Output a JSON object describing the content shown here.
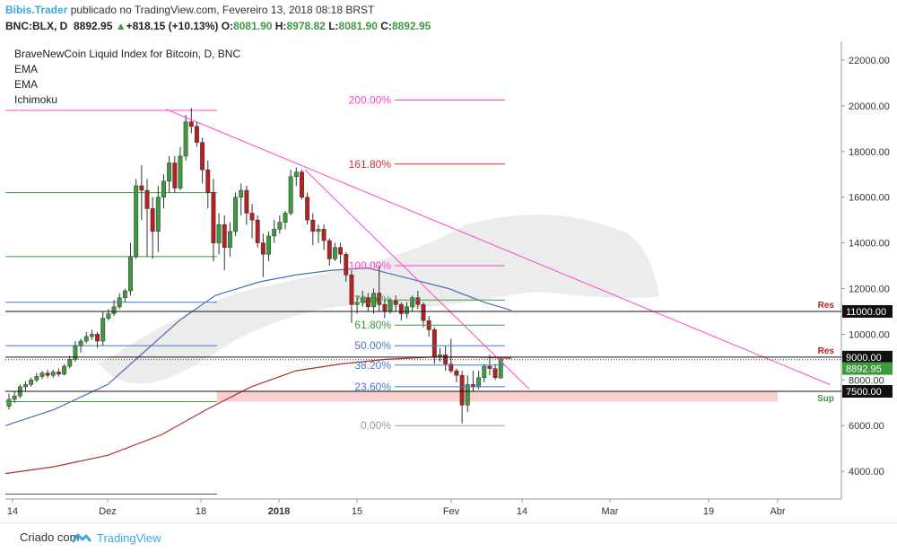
{
  "header": {
    "user": "Bibis.Trader",
    "published": " publicado no TradingView.com, Fevereiro 13, 2018 08:18 BRST",
    "symbol": "BNC:BLX, D",
    "price": "8892.95",
    "change_arrow": "▲",
    "change": "+818.15 (+10.13%)",
    "o_label": "O:",
    "o": "8081.90",
    "h_label": "H:",
    "h": "8978.82",
    "l_label": "L:",
    "l": "8081.90",
    "c_label": "C:",
    "c": "8892.95"
  },
  "legend": [
    "BraveNewCoin Liquid Index for Bitcoin, D, BNC",
    "EMA",
    "EMA",
    "Ichimoku"
  ],
  "footer": {
    "text": "Criado com",
    "brand": "TradingView"
  },
  "colors": {
    "up": "#3e9a3e",
    "down": "#b52020",
    "fib_pink": "#ff44cc",
    "fib_red": "#d03030",
    "fib_green": "#3e9a3e",
    "fib_blue": "#4a78c8",
    "fib_gray": "#9a9a9a",
    "ema_blue": "#4a6fb0",
    "ema_red": "#b03030"
  },
  "chart_data": {
    "type": "candlestick",
    "x_ticks": [
      "14",
      "Dez",
      "18",
      "2018",
      "15",
      "Fev",
      "14",
      "Mar",
      "19",
      "Abr"
    ],
    "y_ticks": [
      "4000.00",
      "6000.00",
      "8000.00",
      "10000.00",
      "12000.00",
      "14000.00",
      "16000.00",
      "18000.00",
      "20000.00",
      "22000.00"
    ],
    "ylim": [
      2500,
      23500
    ],
    "current_price_label": "8892.95",
    "levels": [
      {
        "price": 11000,
        "label": "11000.00",
        "tag": "Res"
      },
      {
        "price": 9000,
        "label": "9000.00",
        "tag": "Res"
      },
      {
        "price": 7500,
        "label": "7500.00",
        "tag": "Sup"
      }
    ],
    "fib_levels": [
      {
        "label": "200.00%",
        "price": 20250
      },
      {
        "label": "161.80%",
        "price": 17450
      },
      {
        "label": "100.00%",
        "price": 13000
      },
      {
        "label": "78.60%",
        "price": 11500
      },
      {
        "label": "61.80%",
        "price": 10400
      },
      {
        "label": "50.00%",
        "price": 9500
      },
      {
        "label": "38.20%",
        "price": 8650
      },
      {
        "label": "23.60%",
        "price": 7700
      },
      {
        "label": "0.00%",
        "price": 6000
      }
    ],
    "candles": [
      [
        6850,
        7150,
        7400,
        6700
      ],
      [
        7150,
        7300,
        7500,
        7000
      ],
      [
        7300,
        7700,
        7800,
        7200
      ],
      [
        7700,
        7800,
        7950,
        7500
      ],
      [
        7800,
        8000,
        8100,
        7700
      ],
      [
        8000,
        8150,
        8300,
        7900
      ],
      [
        8150,
        8300,
        8400,
        8050
      ],
      [
        8300,
        8200,
        8450,
        8100
      ],
      [
        8200,
        8350,
        8450,
        8100
      ],
      [
        8350,
        8250,
        8500,
        8150
      ],
      [
        8250,
        8600,
        8700,
        8200
      ],
      [
        8600,
        8900,
        9050,
        8500
      ],
      [
        8900,
        9500,
        9700,
        8800
      ],
      [
        9500,
        9700,
        9800,
        9200
      ],
      [
        9700,
        9900,
        10100,
        9600
      ],
      [
        9900,
        10000,
        10200,
        9750
      ],
      [
        10000,
        9700,
        10100,
        9400
      ],
      [
        9700,
        10700,
        11000,
        9500
      ],
      [
        10700,
        10900,
        11100,
        10600
      ],
      [
        10900,
        11200,
        11500,
        10800
      ],
      [
        11200,
        11600,
        11800,
        11100
      ],
      [
        11600,
        11900,
        12000,
        11400
      ],
      [
        11900,
        13400,
        14000,
        11700
      ],
      [
        13400,
        16500,
        16800,
        13300
      ],
      [
        16500,
        16300,
        17400,
        15000
      ],
      [
        16300,
        15500,
        16800,
        13400
      ],
      [
        15500,
        14500,
        16000,
        13300
      ],
      [
        14500,
        16000,
        16500,
        13600
      ],
      [
        16000,
        16700,
        17000,
        15500
      ],
      [
        16700,
        17500,
        17800,
        16200
      ],
      [
        17500,
        16400,
        17800,
        16200
      ],
      [
        16400,
        17800,
        18200,
        16300
      ],
      [
        17800,
        19300,
        19600,
        17600
      ],
      [
        19300,
        19100,
        19900,
        18800
      ],
      [
        19100,
        18400,
        19300,
        18200
      ],
      [
        18400,
        17200,
        18600,
        16600
      ],
      [
        17200,
        16200,
        17600,
        15500
      ],
      [
        16200,
        14000,
        16800,
        13200
      ],
      [
        14000,
        14800,
        15300,
        13500
      ],
      [
        14800,
        13800,
        15200,
        12800
      ],
      [
        13800,
        14500,
        14900,
        13400
      ],
      [
        14500,
        16000,
        16200,
        14300
      ],
      [
        16000,
        16300,
        16600,
        15200
      ],
      [
        16300,
        15300,
        16500,
        14800
      ],
      [
        15300,
        15000,
        15700,
        14200
      ],
      [
        15000,
        14000,
        15200,
        13800
      ],
      [
        14000,
        13500,
        14400,
        12500
      ],
      [
        13500,
        14300,
        14500,
        13200
      ],
      [
        14300,
        14600,
        15000,
        14000
      ],
      [
        14600,
        14900,
        15200,
        14400
      ],
      [
        14900,
        15300,
        15400,
        14600
      ],
      [
        15300,
        16900,
        17200,
        15200
      ],
      [
        16900,
        17100,
        17300,
        16500
      ],
      [
        17100,
        16000,
        17200,
        15900
      ],
      [
        16000,
        15000,
        16200,
        14800
      ],
      [
        15000,
        14500,
        15300,
        13900
      ],
      [
        14500,
        14600,
        14800,
        14000
      ],
      [
        14600,
        14100,
        14800,
        13700
      ],
      [
        14100,
        13300,
        14200,
        13000
      ],
      [
        13300,
        13800,
        14000,
        13200
      ],
      [
        13800,
        13500,
        14000,
        13100
      ],
      [
        13500,
        12600,
        13600,
        12300
      ],
      [
        12600,
        11300,
        12800,
        10500
      ],
      [
        11300,
        11400,
        11700,
        10900
      ],
      [
        11400,
        11600,
        11900,
        11200
      ],
      [
        11600,
        11200,
        11800,
        11000
      ],
      [
        11200,
        11800,
        12000,
        10900
      ],
      [
        11800,
        11300,
        13000,
        11000
      ],
      [
        11300,
        11000,
        11600,
        10700
      ],
      [
        11000,
        11500,
        11600,
        10900
      ],
      [
        11500,
        11300,
        11700,
        11000
      ],
      [
        11300,
        10900,
        11400,
        10600
      ],
      [
        10900,
        11200,
        11400,
        10700
      ],
      [
        11200,
        11600,
        11700,
        11000
      ],
      [
        11600,
        11300,
        11900,
        11100
      ],
      [
        11300,
        10600,
        11400,
        10300
      ],
      [
        10600,
        10200,
        10800,
        9900
      ],
      [
        10200,
        9000,
        10300,
        8700
      ],
      [
        9000,
        9100,
        9400,
        8800
      ],
      [
        9100,
        8700,
        9500,
        8400
      ],
      [
        8700,
        8400,
        9800,
        8300
      ],
      [
        8400,
        8200,
        8500,
        7900
      ],
      [
        8200,
        6900,
        8400,
        6100
      ],
      [
        6900,
        7800,
        8200,
        6600
      ],
      [
        7800,
        7700,
        8400,
        7500
      ],
      [
        7700,
        8100,
        8400,
        7600
      ],
      [
        8100,
        8600,
        8700,
        7900
      ],
      [
        8600,
        8500,
        9100,
        8200
      ],
      [
        8500,
        8100,
        8700,
        8000
      ],
      [
        8081.9,
        8892.95,
        8978.82,
        8081.9
      ]
    ]
  }
}
